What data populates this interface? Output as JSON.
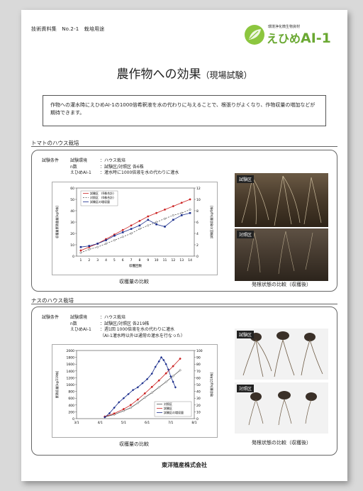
{
  "header": {
    "doc_label": "技術資料集　No.2-1　栽培用途",
    "logo_sub": "環境浄化微生物資材",
    "logo_name": "えひめ",
    "logo_name2": "AI-1"
  },
  "title": {
    "main": "農作物への効果",
    "sub": "（現場試験）"
  },
  "intro": "作物への灌水時にえひめAI-1の1000倍希釈液を水の代わりに与えることで、根張りがよくなり、作物収量の増加などが期待できます。",
  "colors": {
    "experiment": "#cc2222",
    "control": "#555555",
    "difference": "#1a2d8c",
    "brand": "#6aa832"
  },
  "tomato": {
    "heading": "トマトのハウス栽培",
    "cond_label": "試験条件",
    "rows": [
      {
        "k": "試験環境",
        "v": "：ハウス栽培"
      },
      {
        "k": "n数",
        "v": "：試験区/対照区 各6株"
      },
      {
        "k": "えひめAI-1",
        "v": "：灌水時に1000倍液を水の代わりに灌水"
      }
    ],
    "chart_caption": "収穫量の比較",
    "photo_caption": "発根状態の比較（収穫後）",
    "photo_label_exp": "試験区",
    "photo_label_ctrl": "対照区"
  },
  "eggplant": {
    "heading": "ナスのハウス栽培",
    "cond_label": "試験条件",
    "rows": [
      {
        "k": "試験環境",
        "v": "：ハウス栽培"
      },
      {
        "k": "n数",
        "v": "：試験区/対照区 各219株"
      },
      {
        "k": "えひめAI-1",
        "v": "：週1回 1000倍液を水の代わりに灌水"
      },
      {
        "k": "",
        "v": "（AI-1灌水時以外は通常の灌水を行なった）"
      }
    ],
    "chart_caption": "収穫量の比較",
    "photo_caption": "発根状態の比較（収穫後）",
    "photo_label_exp": "試験区",
    "photo_label_ctrl": "対照区"
  },
  "footer": "東洋殖産株式会社",
  "chart_data": [
    {
      "type": "line",
      "x": [
        1,
        2,
        3,
        4,
        5,
        6,
        7,
        8,
        9,
        10,
        11,
        12,
        13,
        14
      ],
      "xlabel": "収穫回数",
      "ylabel": "収穫量累積重量[kg/6株]",
      "y2label": "試験区の増収量[kg/6株]",
      "ylim": [
        0,
        60
      ],
      "y2lim": [
        0,
        12
      ],
      "yticks": [
        0,
        10,
        20,
        30,
        40,
        50,
        60
      ],
      "y2ticks": [
        0,
        2,
        4,
        6,
        8,
        10,
        12
      ],
      "legend": "top-left",
      "series": [
        {
          "name": "試験区　(6株合計)",
          "axis": "left",
          "values": [
            5,
            8,
            11,
            15,
            19,
            23,
            27,
            31,
            35,
            38,
            41,
            44,
            47,
            50
          ]
        },
        {
          "name": "対照区　(6株合計)",
          "axis": "left",
          "values": [
            3,
            6,
            8,
            11,
            14,
            17,
            20,
            24,
            27,
            30,
            33,
            36,
            38,
            41
          ]
        },
        {
          "name": "試験区の増収量",
          "axis": "right",
          "values": [
            1.6,
            1.8,
            2.2,
            2.8,
            3.6,
            4.2,
            4.8,
            5.4,
            6.4,
            5.6,
            5.2,
            6.4,
            7.2,
            7.6
          ]
        }
      ]
    },
    {
      "type": "line",
      "x": [
        "3/1",
        "4/1",
        "5/1",
        "6/1",
        "7/1",
        "8/1"
      ],
      "xlabel": "",
      "ylabel": "累積収量[kg/219株]",
      "y2label": "増収量[kg/219株]",
      "ylim": [
        0,
        2000
      ],
      "y2lim": [
        0,
        100
      ],
      "yticks": [
        0,
        200,
        400,
        600,
        800,
        1000,
        1200,
        1400,
        1600,
        1800,
        2000
      ],
      "y2ticks": [
        0,
        10,
        20,
        30,
        40,
        50,
        60,
        70,
        80,
        90,
        100
      ],
      "legend": "bottom-right",
      "series": [
        {
          "name": "対照区",
          "axis": "left",
          "points": [
            [
              4.2,
              50
            ],
            [
              4.6,
              120
            ],
            [
              5.0,
              230
            ],
            [
              5.3,
              320
            ],
            [
              5.6,
              460
            ],
            [
              5.9,
              620
            ],
            [
              6.2,
              760
            ],
            [
              6.5,
              920
            ],
            [
              6.8,
              1080
            ],
            [
              7.1,
              1250
            ],
            [
              7.4,
              1420
            ]
          ]
        },
        {
          "name": "試験区",
          "axis": "left",
          "points": [
            [
              4.2,
              60
            ],
            [
              4.6,
              150
            ],
            [
              5.0,
              280
            ],
            [
              5.3,
              400
            ],
            [
              5.6,
              560
            ],
            [
              5.9,
              740
            ],
            [
              6.2,
              930
            ],
            [
              6.5,
              1120
            ],
            [
              6.8,
              1330
            ],
            [
              7.1,
              1540
            ],
            [
              7.4,
              1760
            ]
          ]
        },
        {
          "name": "試験区の増収量",
          "axis": "right",
          "points": [
            [
              4.2,
              2
            ],
            [
              4.4,
              8
            ],
            [
              4.6,
              16
            ],
            [
              4.8,
              24
            ],
            [
              5.0,
              30
            ],
            [
              5.2,
              36
            ],
            [
              5.4,
              42
            ],
            [
              5.6,
              46
            ],
            [
              5.8,
              52
            ],
            [
              6.0,
              58
            ],
            [
              6.2,
              66
            ],
            [
              6.35,
              76
            ],
            [
              6.5,
              84
            ],
            [
              6.6,
              90
            ],
            [
              6.7,
              86
            ],
            [
              6.8,
              80
            ],
            [
              6.9,
              72
            ],
            [
              7.0,
              62
            ],
            [
              7.1,
              54
            ],
            [
              7.2,
              46
            ]
          ]
        }
      ]
    }
  ]
}
